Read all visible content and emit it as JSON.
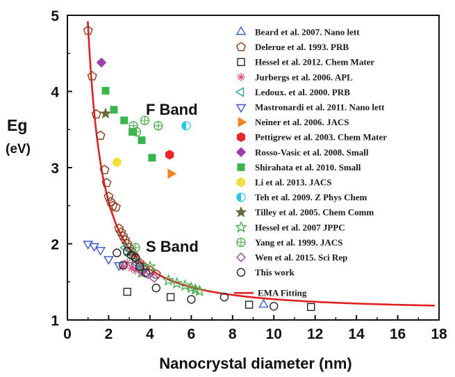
{
  "chart_data": {
    "type": "scatter",
    "title": "",
    "xlabel": "Nanocrystal diameter (nm)",
    "ylabel": "Eg",
    "ylabel_unit": "(eV)",
    "xlim": [
      0,
      18
    ],
    "ylim": [
      1,
      5
    ],
    "x_ticks": [
      "0",
      "2",
      "4",
      "6",
      "8",
      "10",
      "12",
      "14",
      "16",
      "18"
    ],
    "y_ticks": [
      "1",
      "2",
      "3",
      "4",
      "5"
    ],
    "annotations": [
      "F Band",
      "S Band"
    ],
    "grid": false,
    "legend_position": "top-right",
    "series": [
      {
        "name": "Beard et al. 2007. Nano lett",
        "marker": "triangle-up-open",
        "color": "#3a5fcd",
        "x": [
          9.5
        ],
        "y": [
          1.2
        ]
      },
      {
        "name": "Delerue et al. 1993. PRB",
        "marker": "pentagon-open",
        "color": "#8b3a1a",
        "x": [
          1.0,
          1.2,
          1.4,
          1.6,
          1.8,
          1.9,
          2.0,
          2.1,
          2.2,
          2.35,
          2.5,
          2.6,
          2.7,
          2.8,
          2.9,
          3.0,
          3.1,
          3.2,
          3.3,
          3.5,
          3.7,
          4.0,
          4.3
        ],
        "y": [
          4.8,
          4.2,
          3.7,
          3.42,
          2.97,
          2.8,
          2.62,
          2.55,
          2.5,
          2.48,
          2.2,
          2.15,
          2.1,
          2.05,
          2.0,
          1.95,
          1.9,
          1.85,
          1.8,
          1.75,
          1.7,
          1.65,
          1.6
        ]
      },
      {
        "name": "Hessel et al. 2012. Chem Mater",
        "marker": "square-open",
        "color": "#222222",
        "x": [
          2.9,
          5.0,
          8.8,
          11.8
        ],
        "y": [
          1.37,
          1.3,
          1.2,
          1.17
        ]
      },
      {
        "name": "Jurbergs et al. 2006. APL",
        "marker": "asterisk",
        "color": "#e0457b",
        "x": [
          2.7,
          2.9,
          3.1,
          3.3,
          3.6
        ],
        "y": [
          1.7,
          1.75,
          1.68,
          1.65,
          1.62
        ]
      },
      {
        "name": "Ledoux. et al. 2000. PRB",
        "marker": "triangle-left-open",
        "color": "#2a9d8f",
        "x": [
          2.8,
          3.0,
          3.3,
          3.6
        ],
        "y": [
          1.95,
          1.85,
          1.75,
          1.68
        ]
      },
      {
        "name": "Mastronardi et al. 2011. Nano lett",
        "marker": "triangle-down-open",
        "color": "#3a4fcd",
        "x": [
          1.0,
          1.3,
          1.6,
          2.0,
          2.5
        ],
        "y": [
          2.0,
          1.97,
          1.92,
          1.8,
          1.72
        ]
      },
      {
        "name": "Neiner et al. 2006. JACS",
        "marker": "triangle-right-filled",
        "color": "#f58220",
        "x": [
          5.0
        ],
        "y": [
          2.92
        ]
      },
      {
        "name": "Pettigrew et al. 2003. Chem Mater",
        "marker": "hexagon-filled",
        "color": "#e8262b",
        "x": [
          4.95
        ],
        "y": [
          3.17
        ]
      },
      {
        "name": "Rosso-Vasic et al. 2008. Small",
        "marker": "diamond-filled",
        "color": "#9b3fa9",
        "x": [
          1.65
        ],
        "y": [
          4.38
        ]
      },
      {
        "name": "Shirahata et al. 2010. Small",
        "marker": "square-filled",
        "color": "#39b54a",
        "x": [
          1.85,
          2.25,
          2.75,
          3.15,
          3.6,
          4.1
        ],
        "y": [
          4.01,
          3.76,
          3.62,
          3.47,
          3.36,
          3.13
        ]
      },
      {
        "name": "Li et al. 2013. JACS",
        "marker": "hexagon-filled",
        "color": "#f2e03a",
        "x": [
          2.4
        ],
        "y": [
          3.07
        ]
      },
      {
        "name": "Teh et al. 2009. Z Phys Chem",
        "marker": "circle-half",
        "color": "#29c5e6",
        "x": [
          5.75
        ],
        "y": [
          3.55
        ]
      },
      {
        "name": "Tilley et al. 2005. Chem Comm",
        "marker": "star-filled",
        "color": "#6b6b3a",
        "x": [
          1.85
        ],
        "y": [
          3.71
        ]
      },
      {
        "name": "Hessel et al. 2007 JPPC",
        "marker": "star-open",
        "color": "#4caf50",
        "x": [
          3.6,
          4.0,
          4.9,
          5.3,
          5.7,
          6.0,
          6.2,
          6.4
        ],
        "y": [
          1.62,
          1.7,
          1.52,
          1.48,
          1.45,
          1.42,
          1.4,
          1.38
        ]
      },
      {
        "name": "Yang et al. 1999. JACS",
        "marker": "circle-plus",
        "color": "#4caf50",
        "x": [
          3.2,
          3.35,
          3.75,
          4.4,
          3.3
        ],
        "y": [
          3.55,
          3.47,
          3.62,
          3.55,
          1.95
        ]
      },
      {
        "name": "Wen et al. 2015. Sci Rep",
        "marker": "diamond-open",
        "color": "#9b3fa9",
        "x": [
          3.3,
          3.6,
          3.9,
          4.2
        ],
        "y": [
          1.72,
          1.65,
          1.6,
          1.55
        ]
      },
      {
        "name": "This work",
        "marker": "circle-open",
        "color": "#222222",
        "x": [
          2.4,
          2.7,
          2.9,
          3.1,
          3.3,
          3.5,
          3.8,
          4.3,
          6.0,
          7.6,
          10.0
        ],
        "y": [
          1.88,
          1.72,
          1.9,
          1.85,
          1.82,
          1.7,
          1.62,
          1.42,
          1.27,
          1.3,
          1.18
        ]
      },
      {
        "name": "EMA Fitting",
        "marker": "line",
        "color": "#e02020",
        "formula": "Eg = 1.12 + 3.75 / d^1.39"
      }
    ]
  }
}
